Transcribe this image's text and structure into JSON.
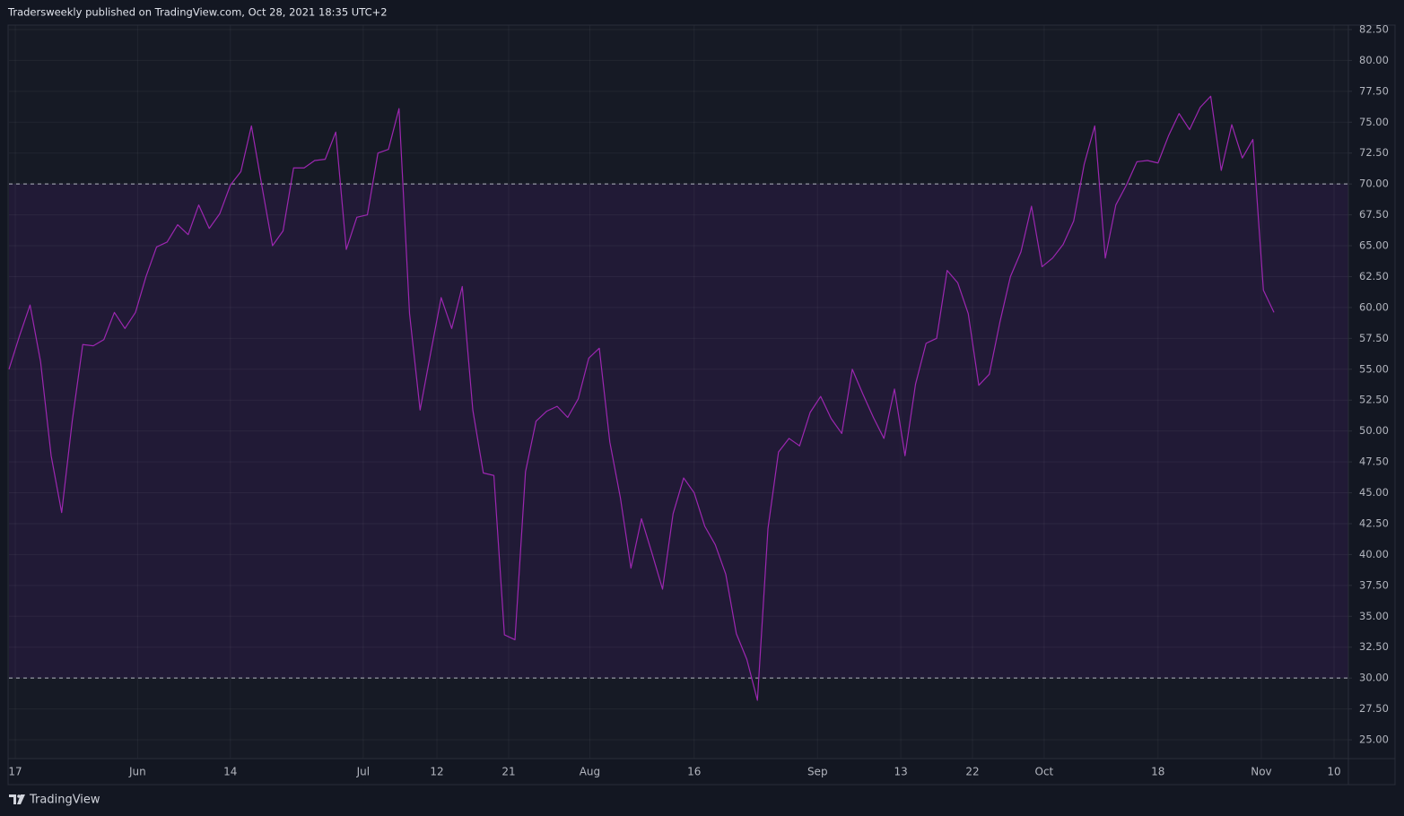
{
  "header": {
    "text": "Tradersweekly published on TradingView.com, Oct 28, 2021 18:35 UTC+2"
  },
  "footer": {
    "brand": "TradingView"
  },
  "chart_data": {
    "type": "line",
    "color": "#9c27b0",
    "band": {
      "upper": 70,
      "lower": 30,
      "fill": "#211a36",
      "line_color": "#b2b5be"
    },
    "grid": true,
    "values": [
      55.0,
      57.7,
      60.2,
      55.6,
      48.0,
      43.4,
      50.8,
      57.0,
      56.9,
      57.4,
      59.6,
      58.3,
      59.6,
      62.5,
      64.9,
      65.3,
      66.7,
      65.9,
      68.3,
      66.4,
      67.6,
      69.9,
      71.0,
      74.7,
      69.8,
      65.0,
      66.2,
      71.3,
      71.3,
      71.9,
      72.0,
      74.2,
      64.7,
      67.3,
      67.5,
      72.5,
      72.8,
      76.1,
      59.5,
      51.7,
      56.3,
      60.8,
      58.3,
      61.7,
      51.7,
      46.6,
      46.4,
      33.5,
      33.1,
      46.7,
      50.8,
      51.6,
      52.0,
      51.1,
      52.6,
      55.9,
      56.7,
      49.1,
      44.6,
      38.9,
      42.9,
      40.1,
      37.2,
      43.3,
      46.2,
      45.0,
      42.3,
      40.8,
      38.4,
      33.6,
      31.5,
      28.2,
      42.1,
      48.3,
      49.4,
      48.8,
      51.5,
      52.8,
      51.0,
      49.8,
      55.0,
      53.0,
      51.1,
      49.4,
      53.4,
      48.0,
      53.8,
      57.1,
      57.5,
      63.0,
      62.0,
      59.5,
      53.7,
      54.6,
      58.8,
      62.5,
      64.5,
      68.2,
      63.3,
      64.0,
      65.1,
      67.0,
      71.6,
      74.7,
      64.0,
      68.3,
      69.9,
      71.8,
      71.9,
      71.7,
      73.9,
      75.7,
      74.4,
      76.2,
      77.1,
      71.1,
      74.8,
      72.1,
      73.6,
      61.4,
      59.6
    ],
    "xlim": [
      0,
      127.06
    ],
    "xticks": [
      {
        "value": 0.6,
        "label": "17"
      },
      {
        "value": 12.2,
        "label": "Jun"
      },
      {
        "value": 21.0,
        "label": "14"
      },
      {
        "value": 33.6,
        "label": "Jul"
      },
      {
        "value": 40.6,
        "label": "12"
      },
      {
        "value": 47.4,
        "label": "21"
      },
      {
        "value": 55.1,
        "label": "Aug"
      },
      {
        "value": 65.0,
        "label": "16"
      },
      {
        "value": 76.7,
        "label": "Sep"
      },
      {
        "value": 84.6,
        "label": "13"
      },
      {
        "value": 91.4,
        "label": "22"
      },
      {
        "value": 98.2,
        "label": "Oct"
      },
      {
        "value": 109.0,
        "label": "18"
      },
      {
        "value": 118.8,
        "label": "Nov"
      },
      {
        "value": 125.7,
        "label": "10"
      }
    ],
    "ylim": [
      23.48,
      82.86
    ],
    "yticks": [
      {
        "value": 25,
        "label": "25.00"
      },
      {
        "value": 27.5,
        "label": "27.50"
      },
      {
        "value": 30,
        "label": "30.00"
      },
      {
        "value": 32.5,
        "label": "32.50"
      },
      {
        "value": 35,
        "label": "35.00"
      },
      {
        "value": 37.5,
        "label": "37.50"
      },
      {
        "value": 40,
        "label": "40.00"
      },
      {
        "value": 42.5,
        "label": "42.50"
      },
      {
        "value": 45,
        "label": "45.00"
      },
      {
        "value": 47.5,
        "label": "47.50"
      },
      {
        "value": 50,
        "label": "50.00"
      },
      {
        "value": 52.5,
        "label": "52.50"
      },
      {
        "value": 55,
        "label": "55.00"
      },
      {
        "value": 57.5,
        "label": "57.50"
      },
      {
        "value": 60,
        "label": "60.00"
      },
      {
        "value": 62.5,
        "label": "62.50"
      },
      {
        "value": 65,
        "label": "65.00"
      },
      {
        "value": 67.5,
        "label": "67.50"
      },
      {
        "value": 70,
        "label": "70.00"
      },
      {
        "value": 72.5,
        "label": "72.50"
      },
      {
        "value": 75,
        "label": "75.00"
      },
      {
        "value": 77.5,
        "label": "77.50"
      },
      {
        "value": 80,
        "label": "80.00"
      },
      {
        "value": 82.5,
        "label": "82.50"
      }
    ]
  }
}
